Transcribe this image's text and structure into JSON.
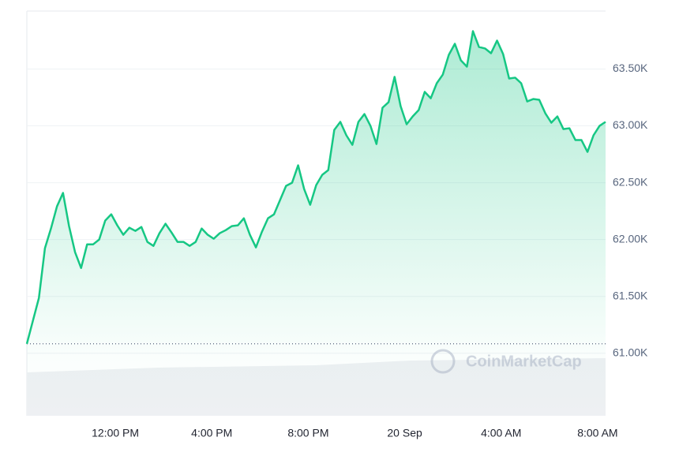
{
  "chart_data": {
    "type": "line",
    "color": "#16c784",
    "grid": true,
    "watermark": "CoinMarketCap",
    "x": [
      8.33,
      8.58,
      8.83,
      9.08,
      9.33,
      9.58,
      9.83,
      10.08,
      10.33,
      10.58,
      10.83,
      11.08,
      11.33,
      11.58,
      11.83,
      12.08,
      12.33,
      12.58,
      12.83,
      13.08,
      13.33,
      13.58,
      13.83,
      14.08,
      14.33,
      14.58,
      14.83,
      15.08,
      15.33,
      15.58,
      15.83,
      16.08,
      16.33,
      16.58,
      16.83,
      17.08,
      17.33,
      17.58,
      17.83,
      18.08,
      18.33,
      18.58,
      18.83,
      19.08,
      19.33,
      19.58,
      19.83,
      20.08,
      20.33,
      20.58,
      20.83,
      21.08,
      21.33,
      21.58,
      21.83,
      22.08,
      22.33,
      22.58,
      22.83,
      23.08,
      23.33,
      23.58,
      23.83,
      24.08,
      24.33,
      24.58,
      24.83,
      25.08,
      25.33,
      25.58,
      25.83,
      26.08,
      26.33,
      26.58,
      26.83,
      27.08,
      27.33,
      27.58,
      27.83,
      28.08,
      28.33,
      28.58,
      28.83,
      29.08,
      29.33,
      29.58,
      29.83,
      30.08,
      30.33,
      30.58,
      30.83,
      31.08,
      31.33,
      31.58,
      31.83,
      32.08,
      32.33
    ],
    "values": [
      61083,
      61285,
      61486,
      61924,
      62097,
      62292,
      62410,
      62118,
      61889,
      61750,
      61958,
      61958,
      62000,
      62167,
      62222,
      62125,
      62042,
      62104,
      62076,
      62111,
      61979,
      61944,
      62056,
      62139,
      62062,
      61979,
      61979,
      61944,
      61979,
      62097,
      62042,
      62007,
      62056,
      62083,
      62118,
      62125,
      62187,
      62042,
      61931,
      62069,
      62187,
      62222,
      62347,
      62472,
      62500,
      62653,
      62444,
      62306,
      62479,
      62569,
      62611,
      62965,
      63035,
      62917,
      62833,
      63035,
      63104,
      63000,
      62840,
      63160,
      63208,
      63431,
      63174,
      63014,
      63083,
      63139,
      63299,
      63243,
      63375,
      63451,
      63625,
      63722,
      63576,
      63521,
      63833,
      63694,
      63681,
      63639,
      63750,
      63632,
      63417,
      63424,
      63375,
      63215,
      63236,
      63229,
      63111,
      63028,
      63083,
      62972,
      62979,
      62875,
      62875,
      62771,
      62917,
      63000,
      63035
    ],
    "xlim": [
      8.33,
      32.33
    ],
    "xticks": [
      {
        "value": 12,
        "label": "12:00 PM"
      },
      {
        "value": 16,
        "label": "4:00 PM"
      },
      {
        "value": 20,
        "label": "8:00 PM"
      },
      {
        "value": 24,
        "label": "20 Sep"
      },
      {
        "value": 28,
        "label": "4:00 AM"
      },
      {
        "value": 32,
        "label": "8:00 AM"
      }
    ],
    "ylim": [
      60450,
      64010
    ],
    "yticks": [
      {
        "value": 61000,
        "label": "61.00K"
      },
      {
        "value": 61500,
        "label": "61.50K"
      },
      {
        "value": 62000,
        "label": "62.00K"
      },
      {
        "value": 62500,
        "label": "62.50K"
      },
      {
        "value": 63000,
        "label": "63.00K"
      },
      {
        "value": 63500,
        "label": "63.50K"
      }
    ]
  }
}
